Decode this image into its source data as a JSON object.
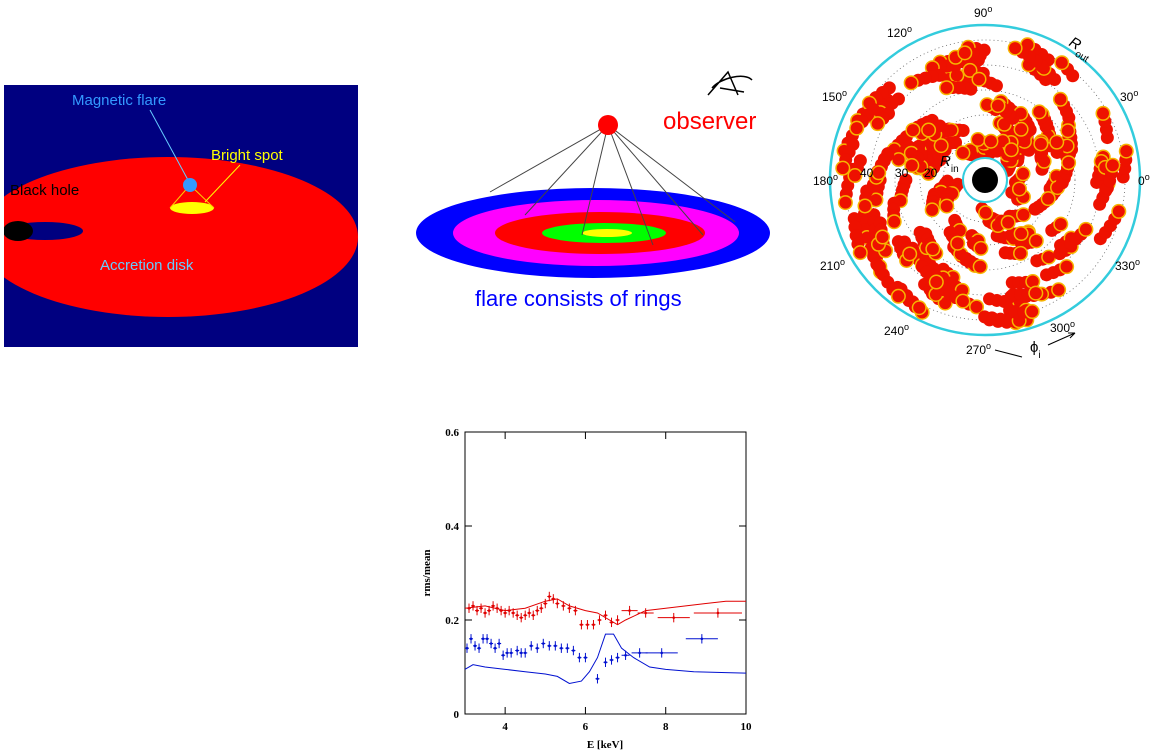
{
  "panel1": {
    "magnetic_flare": "Magnetic flare",
    "bright_spot": "Bright spot",
    "black_hole": "Black hole",
    "accretion_disk": "Accretion disk"
  },
  "panel2": {
    "observer": "observer",
    "caption": "flare consists of rings"
  },
  "panel3": {
    "angles": [
      "90",
      "120",
      "150",
      "180",
      "210",
      "240",
      "270",
      "300",
      "330",
      "0",
      "30"
    ],
    "degree_mark": "o",
    "r_out": {
      "symbol": "R",
      "sub": "out"
    },
    "r_in": {
      "symbol": "R",
      "sub": "in"
    },
    "phi": {
      "symbol": "ϕ",
      "sub": "i"
    },
    "radii": [
      "40",
      "30",
      "20"
    ]
  },
  "chart_data": {
    "type": "errorbar",
    "xlabel": "E [keV]",
    "ylabel": "rms/mean",
    "xlim": [
      3,
      10
    ],
    "ylim": [
      0,
      0.6
    ],
    "xticks": [
      4,
      6,
      8,
      10
    ],
    "yticks": [
      0,
      0.2,
      0.4,
      0.6
    ],
    "series": [
      {
        "color": "#e00000",
        "x": [
          3.1,
          3.2,
          3.3,
          3.4,
          3.5,
          3.6,
          3.7,
          3.8,
          3.9,
          4.0,
          4.1,
          4.2,
          4.3,
          4.4,
          4.5,
          4.6,
          4.7,
          4.8,
          4.9,
          5.0,
          5.1,
          5.2,
          5.3,
          5.45,
          5.6,
          5.75,
          5.9,
          6.05,
          6.2,
          6.35,
          6.5,
          6.65,
          6.8,
          7.1,
          7.5,
          8.2,
          9.3
        ],
        "values": [
          0.225,
          0.23,
          0.22,
          0.225,
          0.215,
          0.22,
          0.23,
          0.225,
          0.22,
          0.215,
          0.22,
          0.215,
          0.21,
          0.205,
          0.21,
          0.215,
          0.21,
          0.22,
          0.225,
          0.235,
          0.25,
          0.245,
          0.235,
          0.23,
          0.225,
          0.22,
          0.19,
          0.19,
          0.19,
          0.2,
          0.21,
          0.195,
          0.2,
          0.22,
          0.215,
          0.205,
          0.215
        ],
        "yerr": [
          0.01,
          0.01,
          0.01,
          0.01,
          0.01,
          0.01,
          0.01,
          0.01,
          0.01,
          0.01,
          0.01,
          0.01,
          0.01,
          0.01,
          0.01,
          0.01,
          0.01,
          0.01,
          0.01,
          0.01,
          0.01,
          0.01,
          0.01,
          0.01,
          0.01,
          0.01,
          0.01,
          0.01,
          0.01,
          0.01,
          0.01,
          0.01,
          0.01,
          0.01,
          0.01,
          0.01,
          0.01
        ],
        "xerr": [
          0.05,
          0.05,
          0.05,
          0.05,
          0.05,
          0.05,
          0.05,
          0.05,
          0.05,
          0.05,
          0.05,
          0.05,
          0.05,
          0.05,
          0.05,
          0.05,
          0.05,
          0.05,
          0.05,
          0.05,
          0.05,
          0.05,
          0.05,
          0.05,
          0.05,
          0.05,
          0.05,
          0.05,
          0.05,
          0.05,
          0.05,
          0.05,
          0.05,
          0.2,
          0.2,
          0.4,
          0.6
        ]
      },
      {
        "color": "#0010d0",
        "x": [
          3.05,
          3.15,
          3.25,
          3.35,
          3.45,
          3.55,
          3.65,
          3.75,
          3.85,
          3.95,
          4.05,
          4.15,
          4.3,
          4.4,
          4.5,
          4.65,
          4.8,
          4.95,
          5.1,
          5.25,
          5.4,
          5.55,
          5.7,
          5.85,
          6.0,
          6.3,
          6.5,
          6.65,
          6.8,
          7.0,
          7.35,
          7.9,
          8.9
        ],
        "values": [
          0.14,
          0.16,
          0.145,
          0.14,
          0.16,
          0.16,
          0.15,
          0.14,
          0.15,
          0.125,
          0.13,
          0.13,
          0.135,
          0.13,
          0.13,
          0.145,
          0.14,
          0.15,
          0.145,
          0.145,
          0.14,
          0.14,
          0.135,
          0.12,
          0.12,
          0.075,
          0.11,
          0.115,
          0.12,
          0.125,
          0.13,
          0.13,
          0.16
        ],
        "yerr": [
          0.01,
          0.01,
          0.01,
          0.01,
          0.01,
          0.01,
          0.01,
          0.01,
          0.01,
          0.01,
          0.01,
          0.01,
          0.01,
          0.01,
          0.01,
          0.01,
          0.01,
          0.01,
          0.01,
          0.01,
          0.01,
          0.01,
          0.01,
          0.01,
          0.01,
          0.01,
          0.01,
          0.01,
          0.01,
          0.01,
          0.01,
          0.01,
          0.01
        ],
        "xerr": [
          0.05,
          0.05,
          0.05,
          0.05,
          0.05,
          0.05,
          0.05,
          0.05,
          0.05,
          0.05,
          0.05,
          0.05,
          0.05,
          0.05,
          0.05,
          0.05,
          0.05,
          0.05,
          0.05,
          0.05,
          0.05,
          0.05,
          0.05,
          0.05,
          0.05,
          0.05,
          0.05,
          0.05,
          0.05,
          0.1,
          0.2,
          0.4,
          0.4
        ]
      }
    ],
    "curves": [
      {
        "color": "#e00000",
        "x": [
          3,
          3.5,
          4,
          4.5,
          5,
          5.3,
          5.6,
          6,
          6.3,
          6.6,
          6.8,
          7,
          7.5,
          8,
          8.5,
          9,
          9.5,
          10
        ],
        "values": [
          0.225,
          0.23,
          0.22,
          0.225,
          0.24,
          0.245,
          0.23,
          0.22,
          0.215,
          0.2,
          0.19,
          0.2,
          0.22,
          0.225,
          0.23,
          0.235,
          0.24,
          0.24
        ]
      },
      {
        "color": "#0010d0",
        "x": [
          3,
          3.2,
          3.5,
          4,
          4.5,
          5,
          5.3,
          5.6,
          5.9,
          6.1,
          6.3,
          6.5,
          6.7,
          6.9,
          7.2,
          7.6,
          8,
          8.7,
          9.5,
          10
        ],
        "values": [
          0.095,
          0.105,
          0.1,
          0.095,
          0.09,
          0.085,
          0.08,
          0.065,
          0.07,
          0.09,
          0.12,
          0.17,
          0.17,
          0.14,
          0.12,
          0.1,
          0.095,
          0.09,
          0.088,
          0.087
        ]
      }
    ]
  }
}
